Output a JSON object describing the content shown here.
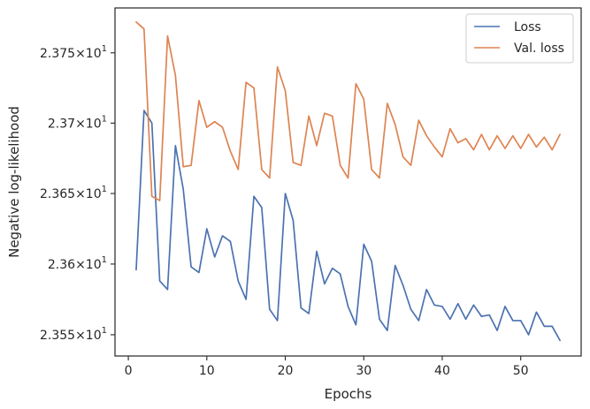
{
  "chart_data": {
    "type": "line",
    "title": "",
    "xlabel": "Epochs",
    "ylabel": "Negative log-likelihood",
    "y_scale": "log",
    "xlim": [
      -1.7,
      57.7
    ],
    "ylim": [
      23.535,
      23.782
    ],
    "x_ticks": [
      0,
      10,
      20,
      30,
      40,
      50
    ],
    "x_tick_labels": [
      "0",
      "10",
      "20",
      "30",
      "40",
      "50"
    ],
    "y_ticks": [
      23.55,
      23.6,
      23.65,
      23.7,
      23.75
    ],
    "y_tick_labels": [
      {
        "mantissa": "2.355",
        "times": "×",
        "base": "10",
        "exp": "1"
      },
      {
        "mantissa": "2.36",
        "times": "×",
        "base": "10",
        "exp": "1"
      },
      {
        "mantissa": "2.365",
        "times": "×",
        "base": "10",
        "exp": "1"
      },
      {
        "mantissa": "2.37",
        "times": "×",
        "base": "10",
        "exp": "1"
      },
      {
        "mantissa": "2.375",
        "times": "×",
        "base": "10",
        "exp": "1"
      }
    ],
    "grid": false,
    "legend_position": "top-right",
    "x": [
      1,
      2,
      3,
      4,
      5,
      6,
      7,
      8,
      9,
      10,
      11,
      12,
      13,
      14,
      15,
      16,
      17,
      18,
      19,
      20,
      21,
      22,
      23,
      24,
      25,
      26,
      27,
      28,
      29,
      30,
      31,
      32,
      33,
      34,
      35,
      36,
      37,
      38,
      39,
      40,
      41,
      42,
      43,
      44,
      45,
      46,
      47,
      48,
      49,
      50,
      51,
      52,
      53,
      54,
      55
    ],
    "series": [
      {
        "name": "Loss",
        "color": "#4c72b0",
        "values": [
          23.596,
          23.709,
          23.7,
          23.588,
          23.582,
          23.684,
          23.653,
          23.598,
          23.594,
          23.625,
          23.605,
          23.62,
          23.616,
          23.588,
          23.575,
          23.648,
          23.64,
          23.568,
          23.56,
          23.65,
          23.631,
          23.569,
          23.565,
          23.609,
          23.586,
          23.597,
          23.593,
          23.57,
          23.557,
          23.614,
          23.602,
          23.561,
          23.553,
          23.599,
          23.585,
          23.568,
          23.56,
          23.582,
          23.571,
          23.57,
          23.561,
          23.572,
          23.561,
          23.571,
          23.563,
          23.564,
          23.553,
          23.57,
          23.56,
          23.56,
          23.55,
          23.566,
          23.556,
          23.556,
          23.546
        ]
      },
      {
        "name": "Val. loss",
        "color": "#dd8452",
        "values": [
          23.772,
          23.767,
          23.648,
          23.645,
          23.762,
          23.734,
          23.669,
          23.67,
          23.716,
          23.697,
          23.701,
          23.697,
          23.68,
          23.667,
          23.729,
          23.725,
          23.667,
          23.661,
          23.74,
          23.723,
          23.672,
          23.67,
          23.705,
          23.684,
          23.707,
          23.705,
          23.67,
          23.661,
          23.728,
          23.717,
          23.667,
          23.661,
          23.714,
          23.699,
          23.676,
          23.67,
          23.702,
          23.691,
          23.683,
          23.676,
          23.696,
          23.686,
          23.689,
          23.681,
          23.692,
          23.681,
          23.691,
          23.682,
          23.691,
          23.682,
          23.692,
          23.683,
          23.69,
          23.681,
          23.692
        ]
      }
    ]
  }
}
